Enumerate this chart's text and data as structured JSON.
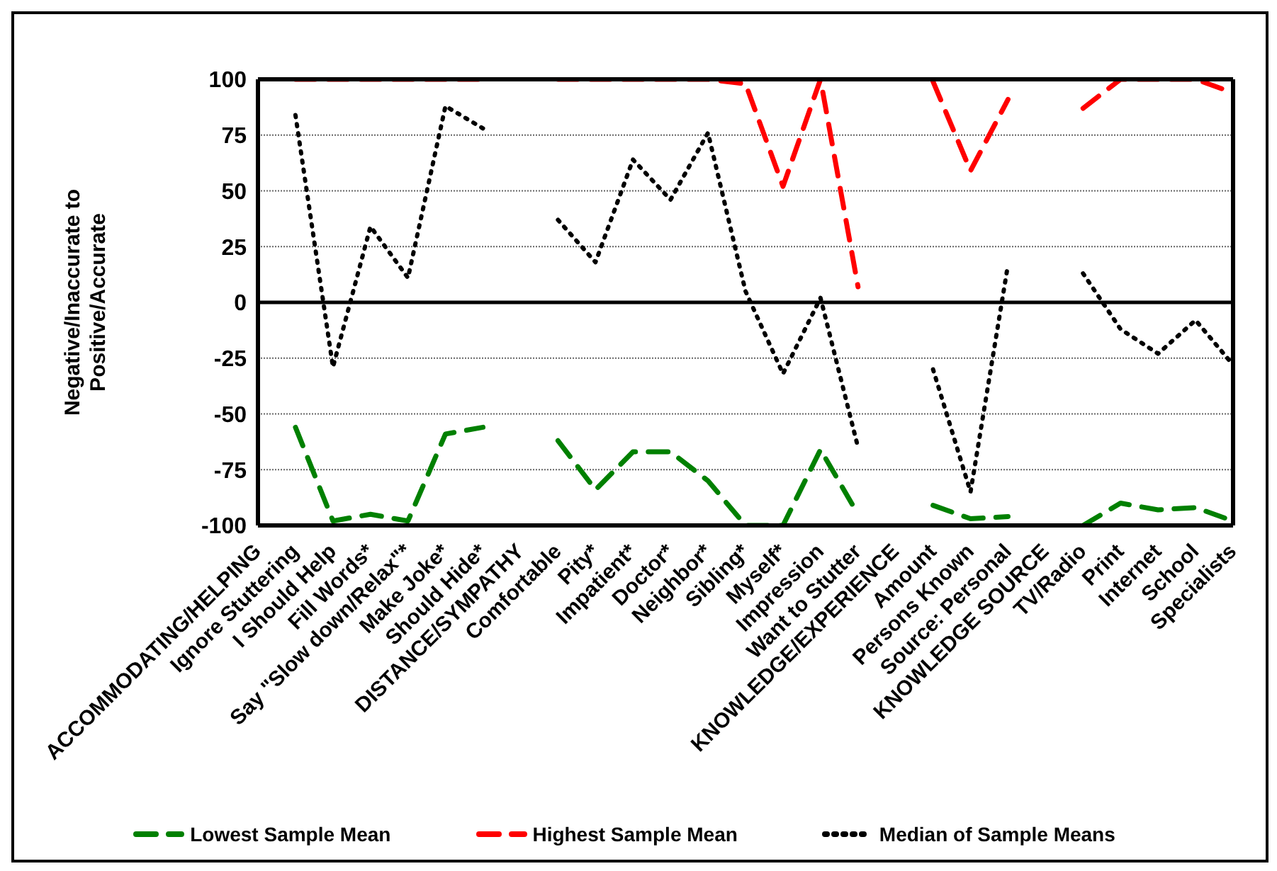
{
  "chart_data": {
    "type": "line",
    "ylabel": "Negative/Inaccurate to Positive/Accurate",
    "categories": [
      "ACCOMMODATING/HELPING",
      "Ignore Stuttering",
      "I Should Help",
      "Fill Words*",
      "Say \"Slow down/Relax\"*",
      "Make Joke*",
      "Should Hide*",
      "DISTANCE/SYMPATHY",
      "Comfortable",
      "Pity*",
      "Impatient*",
      "Doctor*",
      "Neighbor*",
      "Sibling*",
      "Myself*",
      "Impression",
      "Want to Stutter",
      "KNOWLEDGE/EXPERIENCE",
      "Amount",
      "Persons Known",
      "Source: Personal",
      "KNOWLEDGE SOURCE",
      "TV/Radio",
      "Print",
      "Internet",
      "School",
      "Specialists"
    ],
    "series": [
      {
        "name": "Lowest Sample Mean",
        "color": "#008000",
        "line_style": "dashed",
        "values": [
          null,
          -56,
          -98,
          -95,
          -98,
          -59,
          -56,
          null,
          -62,
          -84,
          -67,
          -67,
          -80,
          -100,
          -100,
          -66,
          -95,
          null,
          -91,
          -97,
          -96,
          null,
          -100,
          -90,
          -93,
          -92,
          -98
        ]
      },
      {
        "name": "Highest Sample Mean",
        "color": "#ff0000",
        "line_style": "dashed",
        "values": [
          null,
          100,
          100,
          100,
          100,
          100,
          100,
          null,
          100,
          100,
          100,
          100,
          100,
          98,
          52,
          100,
          7,
          null,
          99,
          59,
          91,
          null,
          87,
          100,
          100,
          100,
          94
        ]
      },
      {
        "name": "Median of Sample Means",
        "color": "#000000",
        "line_style": "dotted",
        "values": [
          null,
          84,
          -29,
          34,
          11,
          88,
          78,
          null,
          37,
          18,
          64,
          46,
          76,
          5,
          -32,
          2,
          -65,
          null,
          -30,
          -85,
          17,
          null,
          13,
          -12,
          -23,
          -8,
          -28
        ]
      }
    ],
    "ylim": [
      -100,
      100
    ],
    "yticks": [
      -100,
      -75,
      -50,
      -25,
      0,
      25,
      50,
      75,
      100
    ],
    "grid": "y",
    "legend": "bottom",
    "marker": "none",
    "ref_lines": [
      {
        "axis": "y",
        "value": 0,
        "color": "#000000",
        "line_style": "solid"
      }
    ]
  }
}
